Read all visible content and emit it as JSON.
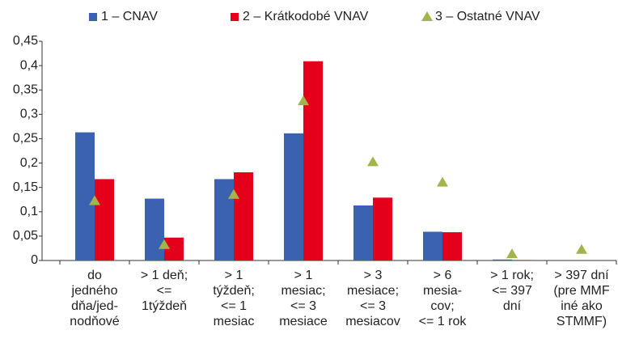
{
  "chart_data": {
    "type": "bar",
    "categories": [
      [
        "do",
        "jedného",
        "dňa/jed-",
        "nodňové"
      ],
      [
        "> 1 deň;",
        "<=",
        "1týždeň"
      ],
      [
        "> 1",
        "týždeň;",
        "<= 1",
        "mesiac"
      ],
      [
        "> 1",
        "mesiac;",
        "<= 3",
        "mesiace"
      ],
      [
        "> 3",
        "mesiace;",
        "<= 3",
        "mesiacov"
      ],
      [
        "> 6",
        "mesia-",
        "cov;",
        "<= 1 rok"
      ],
      [
        "> 1 rok;",
        "<= 397",
        "dní"
      ],
      [
        "> 397 dní",
        "(pre MMF",
        "iné ako",
        "STMMF)"
      ]
    ],
    "series": [
      {
        "name": "1 – CNAV",
        "color": "#3a62b0",
        "values": [
          0.263,
          0.127,
          0.167,
          0.261,
          0.113,
          0.059,
          0.002,
          0.0
        ]
      },
      {
        "name": "2 – Krátkodobé VNAV",
        "color": "#e4001b",
        "values": [
          0.167,
          0.047,
          0.181,
          0.409,
          0.129,
          0.058,
          0.001,
          0.0
        ]
      },
      {
        "name": "3 – Ostatné VNAV",
        "color": "#a3b44c",
        "marker": "triangle",
        "values": [
          0.122,
          0.032,
          0.135,
          0.327,
          0.202,
          0.16,
          0.013,
          0.022
        ]
      }
    ],
    "ylim": [
      0,
      0.45
    ],
    "yticks": [
      0,
      {
        "value": 0.05,
        "label": "0,05"
      },
      {
        "value": 0.1,
        "label": "0,1"
      },
      {
        "value": 0.15,
        "label": "0,15"
      },
      {
        "value": 0.2,
        "label": "0,2"
      },
      {
        "value": 0.25,
        "label": "0,25"
      },
      {
        "value": 0.3,
        "label": "0,3"
      },
      {
        "value": 0.35,
        "label": "0,35"
      },
      {
        "value": 0.4,
        "label": "0,4"
      },
      {
        "value": 0.45,
        "label": "0,45"
      }
    ],
    "grid": false,
    "legend": "top"
  }
}
